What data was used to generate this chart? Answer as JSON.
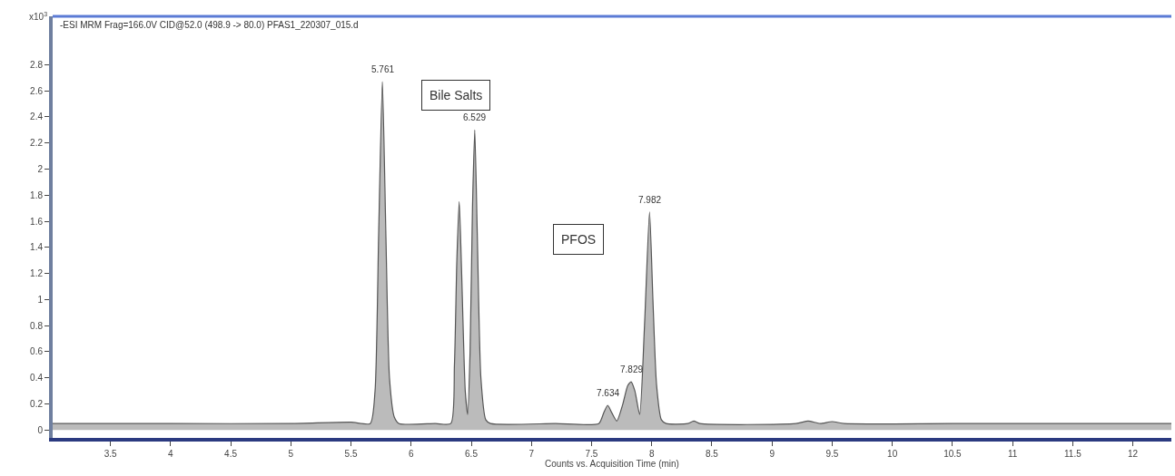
{
  "chart_data": {
    "type": "area",
    "title": "-ESI MRM Frag=166.0V CID@52.0 (498.9 -> 80.0) PFAS1_220307_015.d",
    "xlabel": "Counts vs. Acquisition Time (min)",
    "ylabel": "x10$^{3}$",
    "x": [
      3.02,
      4.0,
      5.0,
      5.5,
      5.66,
      5.7,
      5.73,
      5.761,
      5.79,
      5.82,
      5.86,
      5.9,
      6.2,
      6.33,
      6.36,
      6.38,
      6.4,
      6.42,
      6.45,
      6.47,
      6.49,
      6.51,
      6.529,
      6.55,
      6.58,
      6.62,
      6.66,
      7.2,
      7.56,
      7.6,
      7.634,
      7.67,
      7.71,
      7.76,
      7.8,
      7.829,
      7.86,
      7.9,
      7.94,
      7.982,
      8.01,
      8.04,
      8.08,
      8.12,
      8.3,
      8.35,
      8.4,
      9.2,
      9.3,
      9.4,
      9.5,
      9.6,
      10.5,
      12.32
    ],
    "series": [
      {
        "color": "#555555",
        "values": [
          0.05,
          0.05,
          0.05,
          0.06,
          0.05,
          0.3,
          1.5,
          2.67,
          1.5,
          0.4,
          0.1,
          0.05,
          0.05,
          0.05,
          0.5,
          1.3,
          1.75,
          1.2,
          0.3,
          0.12,
          0.6,
          1.7,
          2.3,
          1.5,
          0.4,
          0.08,
          0.05,
          0.05,
          0.05,
          0.13,
          0.19,
          0.13,
          0.07,
          0.2,
          0.34,
          0.37,
          0.3,
          0.12,
          0.8,
          1.67,
          1.0,
          0.35,
          0.08,
          0.05,
          0.05,
          0.07,
          0.05,
          0.05,
          0.07,
          0.05,
          0.065,
          0.05,
          0.05,
          0.05
        ]
      }
    ],
    "xlim": [
      3.02,
      12.32
    ],
    "ylim": [
      -0.06,
      3.17
    ],
    "xticks": [
      3.5,
      4,
      4.5,
      5,
      5.5,
      6,
      6.5,
      7,
      7.5,
      8,
      8.5,
      9,
      9.5,
      10,
      10.5,
      11,
      11.5,
      12
    ],
    "yticks": [
      0,
      0.2,
      0.4,
      0.6,
      0.8,
      1,
      1.2,
      1.4,
      1.6,
      1.8,
      2,
      2.2,
      2.4,
      2.6,
      2.8
    ],
    "annotations": [
      {
        "text": "5.761",
        "x": 5.761,
        "y": 2.67
      },
      {
        "text": "6.529",
        "x": 6.529,
        "y": 2.3
      },
      {
        "text": "7.634",
        "x": 7.634,
        "y": 0.19
      },
      {
        "text": "7.829",
        "x": 7.829,
        "y": 0.37
      },
      {
        "text": "7.982",
        "x": 7.982,
        "y": 1.67
      },
      "Bile Salts",
      "PFOS"
    ],
    "marker": "none",
    "line_style": "solid"
  }
}
